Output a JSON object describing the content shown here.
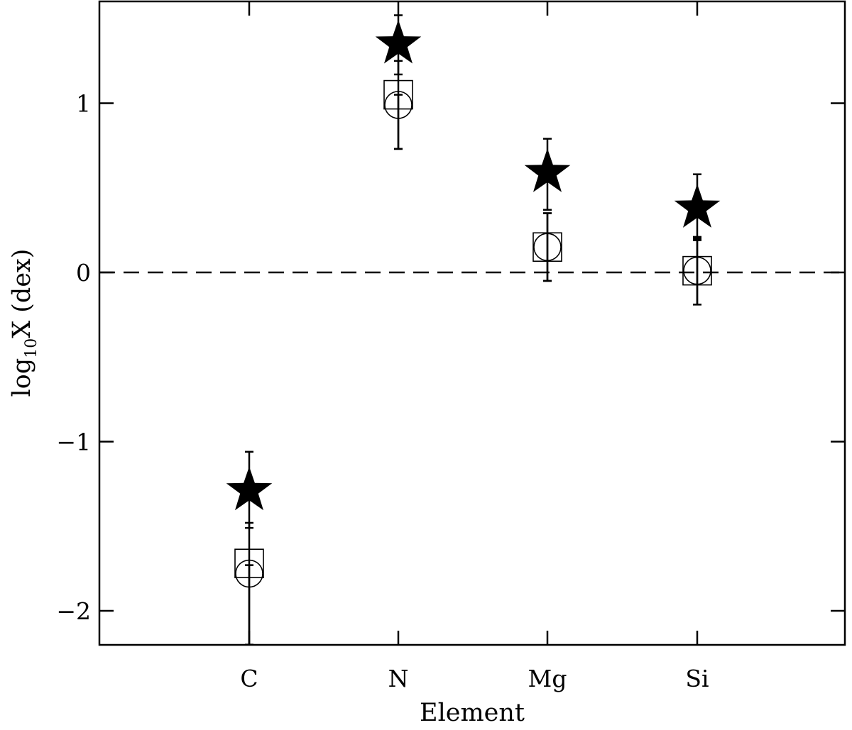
{
  "chart_data": {
    "type": "scatter",
    "xlabel": "Element",
    "ylabel_main": "log",
    "ylabel_sub": "10",
    "ylabel_rest": "X (dex)",
    "categories": [
      "C",
      "N",
      "Mg",
      "Si"
    ],
    "ylim": [
      -2.2,
      1.6
    ],
    "yticks": [
      -2,
      -1,
      0,
      1
    ],
    "ytick_labels": [
      "−2",
      "−1",
      "0",
      "1"
    ],
    "reference_line": {
      "y": 0,
      "style": "dashed"
    },
    "grid": false,
    "legend": "none",
    "series": [
      {
        "marker": "filled-star",
        "values": [
          -1.29,
          1.35,
          0.59,
          0.38
        ],
        "err_low": [
          0.22,
          0.18,
          0.22,
          0.19
        ],
        "err_high": [
          0.23,
          0.17,
          0.2,
          0.2
        ]
      },
      {
        "marker": "open-square",
        "values": [
          -1.72,
          1.05,
          0.15,
          0.01
        ],
        "err_low": [
          0.48,
          0.32,
          0.2,
          0.2
        ],
        "err_high": [
          0.24,
          0.2,
          0.2,
          0.2
        ]
      },
      {
        "marker": "open-circle",
        "values": [
          -1.78,
          0.99,
          0.15,
          0.01
        ],
        "err_low": [
          0.42,
          0.26,
          0.2,
          0.2
        ],
        "err_high": [
          0.05,
          0.06,
          0.2,
          0.19
        ]
      }
    ]
  }
}
